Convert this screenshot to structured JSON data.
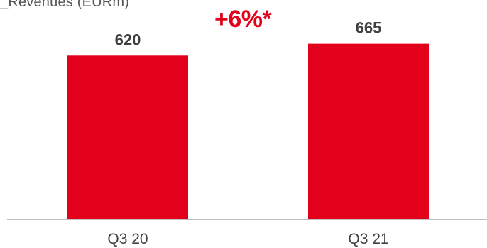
{
  "chart_data": {
    "type": "bar",
    "title": "_Revenues (EURm)",
    "annotation": "+6%*",
    "categories": [
      "Q3 20",
      "Q3 21"
    ],
    "values": [
      620,
      665
    ],
    "data_labels": [
      "620",
      "665"
    ],
    "ylim": [
      0,
      700
    ],
    "grid": false,
    "legend": "none",
    "colors": {
      "bar": "#e2001a",
      "annotation": "#e2001a",
      "axis": "#bfbfbf",
      "label_text": "#404040",
      "tick_text": "#404040",
      "title_text": "#555555"
    }
  }
}
